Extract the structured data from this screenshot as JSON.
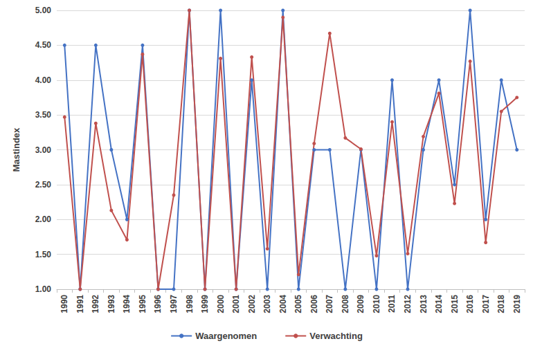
{
  "chart_data": {
    "type": "line",
    "y_label": "Mastindex",
    "categories": [
      "1990",
      "1991",
      "1992",
      "1993",
      "1994",
      "1995",
      "1996",
      "1997",
      "1998",
      "1999",
      "2000",
      "2001",
      "2002",
      "2003",
      "2004",
      "2005",
      "2006",
      "2007",
      "2008",
      "2009",
      "2010",
      "2011",
      "2012",
      "2013",
      "2014",
      "2015",
      "2016",
      "2017",
      "2018",
      "2019"
    ],
    "series": [
      {
        "name": "Waargenomen",
        "color": "#4472c4",
        "marker": "circle",
        "values": [
          4.5,
          1,
          4.5,
          3,
          2,
          4.5,
          1,
          1,
          5,
          1,
          5,
          1,
          4,
          1,
          5,
          1,
          3,
          3,
          1,
          3,
          1,
          4,
          1,
          3,
          4,
          2.5,
          5,
          2,
          4,
          3
        ]
      },
      {
        "name": "Verwachting",
        "color": "#c0504d",
        "marker": "circle",
        "values": [
          3.47,
          1.0,
          3.38,
          2.13,
          1.71,
          4.37,
          1.0,
          2.35,
          5.0,
          1.0,
          4.31,
          1.0,
          4.33,
          1.58,
          4.9,
          1.21,
          3.09,
          4.67,
          3.17,
          3.01,
          1.48,
          3.4,
          1.51,
          3.19,
          3.81,
          2.23,
          4.27,
          1.67,
          3.55,
          3.75
        ]
      }
    ],
    "ylim": [
      1,
      5
    ],
    "yticks": [
      {
        "value": 1,
        "label": "1.00"
      },
      {
        "value": 1.5,
        "label": "1.50"
      },
      {
        "value": 2,
        "label": "2.00"
      },
      {
        "value": 2.5,
        "label": "2.50"
      },
      {
        "value": 3,
        "label": "3.00"
      },
      {
        "value": 3.5,
        "label": "3.50"
      },
      {
        "value": 4,
        "label": "4.00"
      },
      {
        "value": 4.5,
        "label": "4.50"
      },
      {
        "value": 5,
        "label": "5.00"
      }
    ],
    "grid": true,
    "legend": "bottom"
  }
}
